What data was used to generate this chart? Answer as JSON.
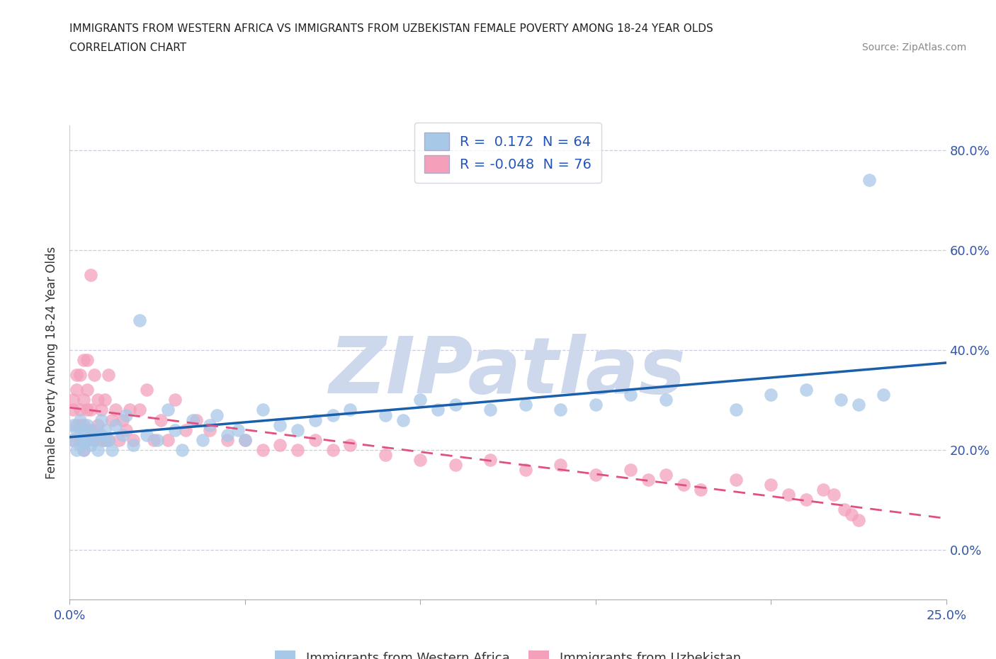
{
  "title_line1": "IMMIGRANTS FROM WESTERN AFRICA VS IMMIGRANTS FROM UZBEKISTAN FEMALE POVERTY AMONG 18-24 YEAR OLDS",
  "title_line2": "CORRELATION CHART",
  "source_text": "Source: ZipAtlas.com",
  "ylabel": "Female Poverty Among 18-24 Year Olds",
  "xlim": [
    0.0,
    0.25
  ],
  "ylim": [
    -0.1,
    0.85
  ],
  "xticks": [
    0.0,
    0.05,
    0.1,
    0.15,
    0.2,
    0.25
  ],
  "yticks": [
    0.0,
    0.2,
    0.4,
    0.6,
    0.8
  ],
  "ytick_labels": [
    "0.0%",
    "20.0%",
    "40.0%",
    "60.0%",
    "80.0%"
  ],
  "xtick_labels": [
    "0.0%",
    "",
    "",
    "",
    "",
    "25.0%"
  ],
  "r_western_africa": 0.172,
  "n_western_africa": 64,
  "r_uzbekistan": -0.048,
  "n_uzbekistan": 76,
  "color_western_africa": "#A8C8E8",
  "color_uzbekistan": "#F4A0BB",
  "line_color_western_africa": "#1A5FAB",
  "line_color_uzbekistan": "#E05080",
  "watermark_color": "#CDD8EC",
  "background_color": "#FFFFFF",
  "western_africa_x": [
    0.001,
    0.001,
    0.002,
    0.002,
    0.003,
    0.003,
    0.003,
    0.004,
    0.004,
    0.004,
    0.005,
    0.005,
    0.006,
    0.006,
    0.007,
    0.007,
    0.008,
    0.009,
    0.009,
    0.01,
    0.01,
    0.011,
    0.012,
    0.013,
    0.015,
    0.016,
    0.018,
    0.02,
    0.022,
    0.025,
    0.028,
    0.03,
    0.032,
    0.035,
    0.038,
    0.04,
    0.042,
    0.045,
    0.048,
    0.05,
    0.055,
    0.06,
    0.065,
    0.07,
    0.075,
    0.08,
    0.09,
    0.095,
    0.1,
    0.105,
    0.11,
    0.12,
    0.13,
    0.14,
    0.15,
    0.16,
    0.17,
    0.19,
    0.2,
    0.21,
    0.22,
    0.225,
    0.228,
    0.232
  ],
  "western_africa_y": [
    0.22,
    0.25,
    0.2,
    0.24,
    0.21,
    0.23,
    0.26,
    0.22,
    0.2,
    0.24,
    0.22,
    0.25,
    0.23,
    0.21,
    0.22,
    0.24,
    0.2,
    0.23,
    0.26,
    0.22,
    0.24,
    0.22,
    0.2,
    0.25,
    0.23,
    0.27,
    0.21,
    0.46,
    0.23,
    0.22,
    0.28,
    0.24,
    0.2,
    0.26,
    0.22,
    0.25,
    0.27,
    0.23,
    0.24,
    0.22,
    0.28,
    0.25,
    0.24,
    0.26,
    0.27,
    0.28,
    0.27,
    0.26,
    0.3,
    0.28,
    0.29,
    0.28,
    0.29,
    0.28,
    0.29,
    0.31,
    0.3,
    0.28,
    0.31,
    0.32,
    0.3,
    0.29,
    0.74,
    0.31
  ],
  "uzbekistan_x": [
    0.001,
    0.001,
    0.001,
    0.002,
    0.002,
    0.002,
    0.003,
    0.003,
    0.003,
    0.003,
    0.004,
    0.004,
    0.004,
    0.004,
    0.005,
    0.005,
    0.005,
    0.005,
    0.006,
    0.006,
    0.006,
    0.007,
    0.007,
    0.008,
    0.008,
    0.009,
    0.009,
    0.01,
    0.01,
    0.011,
    0.011,
    0.012,
    0.013,
    0.014,
    0.015,
    0.016,
    0.017,
    0.018,
    0.02,
    0.022,
    0.024,
    0.026,
    0.028,
    0.03,
    0.033,
    0.036,
    0.04,
    0.045,
    0.05,
    0.055,
    0.06,
    0.065,
    0.07,
    0.075,
    0.08,
    0.09,
    0.1,
    0.11,
    0.12,
    0.13,
    0.14,
    0.15,
    0.16,
    0.165,
    0.17,
    0.175,
    0.18,
    0.19,
    0.2,
    0.205,
    0.21,
    0.215,
    0.218,
    0.221,
    0.223,
    0.225
  ],
  "uzbekistan_y": [
    0.22,
    0.28,
    0.3,
    0.25,
    0.32,
    0.35,
    0.22,
    0.25,
    0.28,
    0.35,
    0.2,
    0.25,
    0.3,
    0.38,
    0.22,
    0.28,
    0.32,
    0.38,
    0.24,
    0.28,
    0.55,
    0.22,
    0.35,
    0.25,
    0.3,
    0.22,
    0.28,
    0.22,
    0.3,
    0.22,
    0.35,
    0.26,
    0.28,
    0.22,
    0.26,
    0.24,
    0.28,
    0.22,
    0.28,
    0.32,
    0.22,
    0.26,
    0.22,
    0.3,
    0.24,
    0.26,
    0.24,
    0.22,
    0.22,
    0.2,
    0.21,
    0.2,
    0.22,
    0.2,
    0.21,
    0.19,
    0.18,
    0.17,
    0.18,
    0.16,
    0.17,
    0.15,
    0.16,
    0.14,
    0.15,
    0.13,
    0.12,
    0.14,
    0.13,
    0.11,
    0.1,
    0.12,
    0.11,
    0.08,
    0.07,
    0.06
  ]
}
